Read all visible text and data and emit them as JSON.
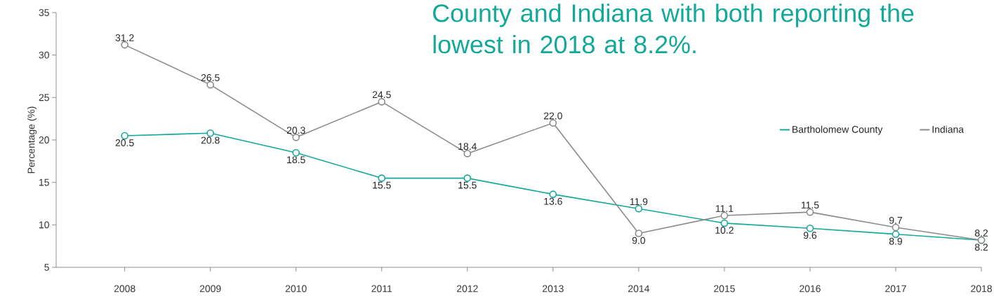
{
  "chart_data": {
    "type": "line",
    "title": "County and Indiana with both reporting the lowest in 2018 at 8.2%.",
    "ylabel": "Percentage (%)",
    "categories": [
      "2008",
      "2009",
      "2010",
      "2011",
      "2012",
      "2013",
      "2014",
      "2015",
      "2016",
      "2017",
      "2018"
    ],
    "series": [
      {
        "name": "Bartholomew County",
        "color": "#12a89a",
        "values": [
          20.5,
          20.8,
          18.5,
          15.5,
          15.5,
          13.6,
          11.9,
          10.2,
          9.6,
          8.9,
          8.2
        ],
        "value_labels": [
          "20.5",
          "20.8",
          "18.5",
          "15.5",
          "15.5",
          "13.6",
          "11.9",
          "10.2",
          "9.6",
          "8.9",
          "8.2"
        ]
      },
      {
        "name": "Indiana",
        "color": "#8a8a8a",
        "values": [
          31.2,
          26.5,
          20.3,
          24.5,
          18.4,
          22.0,
          9.0,
          11.1,
          11.5,
          9.7,
          8.2
        ],
        "value_labels": [
          "31.2",
          "26.5",
          "20.3",
          "24.5",
          "18.4",
          "22.0",
          "9.0",
          "11.1",
          "11.5",
          "9.7",
          "8.2"
        ]
      }
    ],
    "ylim": [
      5,
      35
    ],
    "yticks": [
      5,
      10,
      15,
      20,
      25,
      30,
      35
    ],
    "marker": "circle",
    "legend": "right",
    "grid": false
  }
}
